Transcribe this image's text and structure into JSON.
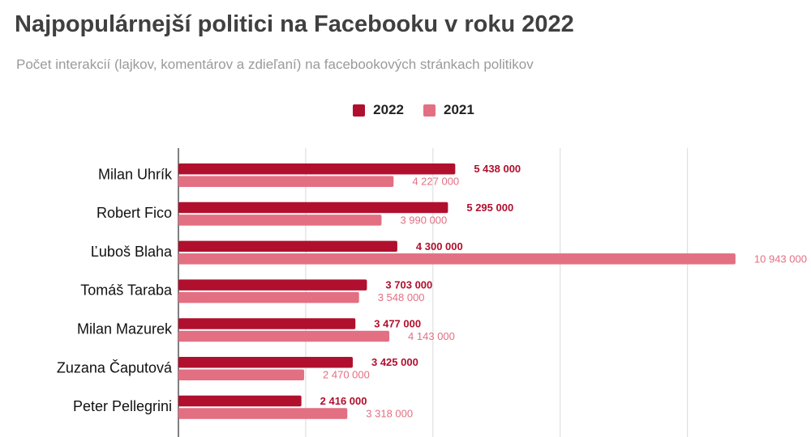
{
  "title": "Najpopulárnejší politici na Facebooku v roku 2022",
  "subtitle": "Počet interakcií (lajkov, komentárov a zdieľaní) na facebookových stránkach politikov",
  "colors": {
    "s2022": "#b0102e",
    "s2021": "#e36f82",
    "grid": "#d9d9d9",
    "axis": "#555555",
    "label": "#111111"
  },
  "chart_data": {
    "type": "bar",
    "orientation": "horizontal",
    "title": "Najpopulárnejší politici na Facebooku v roku 2022",
    "subtitle": "Počet interakcií (lajkov, komentárov a zdieľaní) na facebookových stránkach politikov",
    "categories": [
      "Milan Uhrík",
      "Robert Fico",
      "Ľuboš Blaha",
      "Tomáš Taraba",
      "Milan Mazurek",
      "Zuzana Čaputová",
      "Peter Pellegrini"
    ],
    "series": [
      {
        "name": "2022",
        "color": "#b0102e",
        "values": [
          5438000,
          5295000,
          4300000,
          3703000,
          3477000,
          3425000,
          2416000
        ],
        "labels": [
          "5 438 000",
          "5 295 000",
          "4 300 000",
          "3 703 000",
          "3 477 000",
          "3 425 000",
          "2 416 000"
        ]
      },
      {
        "name": "2021",
        "color": "#e36f82",
        "values": [
          4227000,
          3990000,
          10943000,
          3548000,
          4143000,
          2470000,
          3318000
        ],
        "labels": [
          "4 227 000",
          "3 990 000",
          "10 943 000",
          "3 548 000",
          "4 143 000",
          "2 470 000",
          "3 318 000"
        ]
      }
    ],
    "xlim": [
      0,
      12000000
    ],
    "grid": true,
    "legend": "top-center"
  }
}
